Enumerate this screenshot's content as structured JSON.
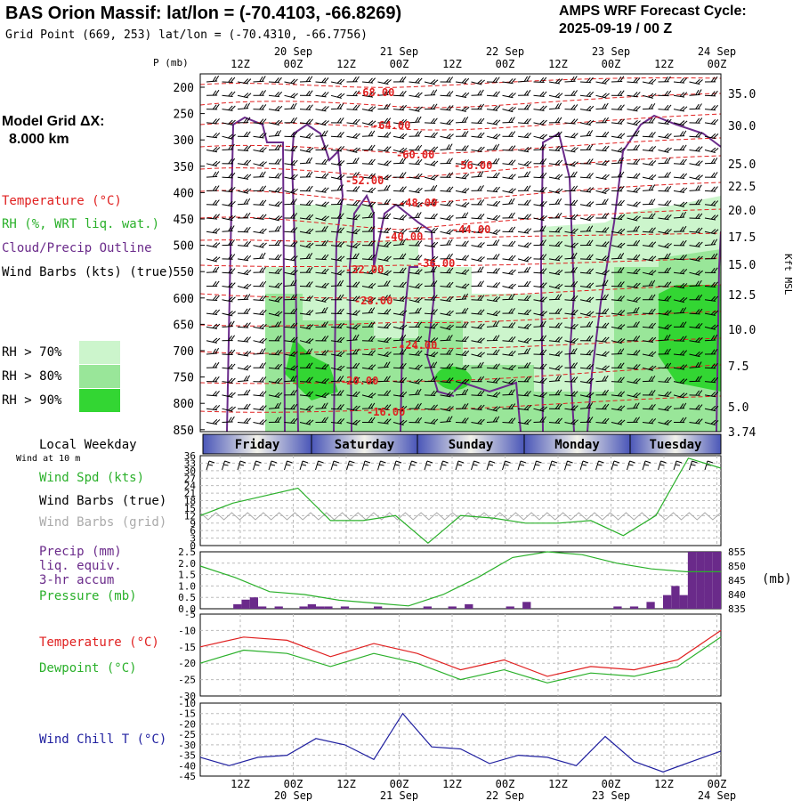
{
  "header": {
    "title": "BAS Orion Massif:  lat/lon = (-70.4103, -66.8269)",
    "gridpoint": "Grid Point (669, 253) lat/lon = (-70.4310, -66.7756)",
    "cycle_label": "AMPS WRF Forecast Cycle:",
    "cycle_value": "2025-09-19 / 00  Z"
  },
  "left_panel": {
    "model_grid": "Model Grid ΔX:",
    "model_grid_value": "8.000 km",
    "temperature": "Temperature (°C)",
    "rh": "RH (%, WRT liq. wat.)",
    "cloud": "Cloud/Precip Outline",
    "wind_barbs": "Wind Barbs (kts) (true)",
    "rh70": "RH > 70%",
    "rh80": "RH > 80%",
    "rh90": "RH > 90%",
    "local_weekday": "Local Weekday",
    "wind_at": "Wind at 10 m",
    "wind_spd": "Wind Spd (kts)",
    "wind_barbs_true": "Wind Barbs (true)",
    "wind_barbs_grid": "Wind Barbs (grid)",
    "precip1": "Precip (mm)",
    "precip2": "liq. equiv.",
    "precip3": "3-hr accum",
    "pressure": "Pressure (mb)",
    "temp2": "Temperature (°C)",
    "dewpoint": "Dewpoint (°C)",
    "windchill": "Wind Chill T (°C)",
    "mb_unit": "(mb)"
  },
  "colors": {
    "rh70": "#ccf5cc",
    "rh80": "#99e699",
    "rh90": "#33d633",
    "temp": "#e02020",
    "green": "#2ab02a",
    "purple": "#6a2a8a",
    "blue": "#2020a0"
  },
  "chart_data": {
    "time_axis": {
      "hour_labels": [
        "12Z",
        "00Z",
        "12Z",
        "00Z",
        "12Z",
        "00Z",
        "12Z",
        "00Z",
        "12Z",
        "00Z"
      ],
      "date_labels": [
        "20 Sep",
        "21 Sep",
        "22 Sep",
        "23 Sep",
        "24 Sep"
      ],
      "weekdays": [
        "Friday",
        "Saturday",
        "Sunday",
        "Monday",
        "Tuesday"
      ]
    },
    "cross_section": {
      "type": "contour",
      "ylabel_left": "P (mb)",
      "ylabel_right": "Kft MSL",
      "pressure_ticks": [
        200,
        250,
        300,
        350,
        400,
        450,
        500,
        550,
        600,
        650,
        700,
        750,
        800,
        850
      ],
      "height_ticks": [
        "35.0",
        "30.0",
        "25.0",
        "22.5",
        "20.0",
        "17.5",
        "15.0",
        "12.5",
        "10.0",
        "7.5",
        "5.0",
        "3.74"
      ],
      "temp_contour_labels": [
        "-68.00",
        "-64.00",
        "-60.00",
        "-56.00",
        "-52.00",
        "-48.00",
        "-44.00",
        "-40.00",
        "-36.00",
        "-32.00",
        "-28.00",
        "-24.00",
        "-20.00",
        "-16.00"
      ]
    },
    "wind_speed": {
      "type": "line",
      "y_ticks": [
        36,
        33,
        30,
        27,
        24,
        21,
        18,
        15,
        12,
        9,
        6,
        3,
        0
      ],
      "ylim": [
        0,
        36
      ],
      "values": [
        12,
        17,
        20,
        23,
        10,
        10,
        12,
        1,
        12,
        11,
        9,
        9,
        10,
        4,
        12,
        35,
        31
      ]
    },
    "precip_pressure": {
      "type": "bar+line",
      "y_ticks_left": [
        "2.5",
        "2.0",
        "1.5",
        "1.0",
        "0.5",
        "0.0"
      ],
      "y_ticks_right": [
        855,
        850,
        845,
        840,
        835
      ],
      "precip_mm": [
        0,
        0,
        0,
        0,
        0.2,
        0.4,
        0.5,
        0.1,
        0,
        0.1,
        0,
        0,
        0.1,
        0.2,
        0.1,
        0.1,
        0,
        0.1,
        0,
        0,
        0,
        0.1,
        0,
        0,
        0,
        0,
        0,
        0.1,
        0,
        0,
        0.1,
        0,
        0.2,
        0,
        0,
        0,
        0,
        0.1,
        0,
        0.3,
        0,
        0,
        0,
        0,
        0,
        0,
        0,
        0,
        0,
        0,
        0.1,
        0,
        0.1,
        0,
        0.3,
        0,
        0.6,
        1.0,
        0.6,
        2.5,
        2.5,
        2.5,
        2.5
      ],
      "pressure_mb": [
        850,
        846,
        841,
        840,
        838,
        837,
        836,
        840,
        846,
        853,
        855,
        854,
        851,
        849,
        848,
        848
      ]
    },
    "temperature": {
      "type": "line",
      "y_ticks": [
        -5,
        -10,
        -15,
        -20,
        -25,
        -30
      ],
      "ylim": [
        -30,
        -5
      ],
      "temp_c": [
        -15,
        -12,
        -13,
        -18,
        -14,
        -17,
        -22,
        -19,
        -24,
        -21,
        -22,
        -19,
        -10
      ],
      "dewpoint_c": [
        -20,
        -16,
        -17,
        -21,
        -17,
        -20,
        -25,
        -22,
        -26,
        -23,
        -24,
        -21,
        -12
      ]
    },
    "wind_chill": {
      "type": "line",
      "y_ticks": [
        -10,
        -15,
        -20,
        -25,
        -30,
        -35,
        -40,
        -45
      ],
      "ylim": [
        -45,
        -10
      ],
      "values": [
        -36,
        -40,
        -36,
        -35,
        -27,
        -30,
        -37,
        -15,
        -31,
        -32,
        -39,
        -35,
        -36,
        -40,
        -26,
        -38,
        -43,
        -38,
        -33
      ]
    }
  }
}
